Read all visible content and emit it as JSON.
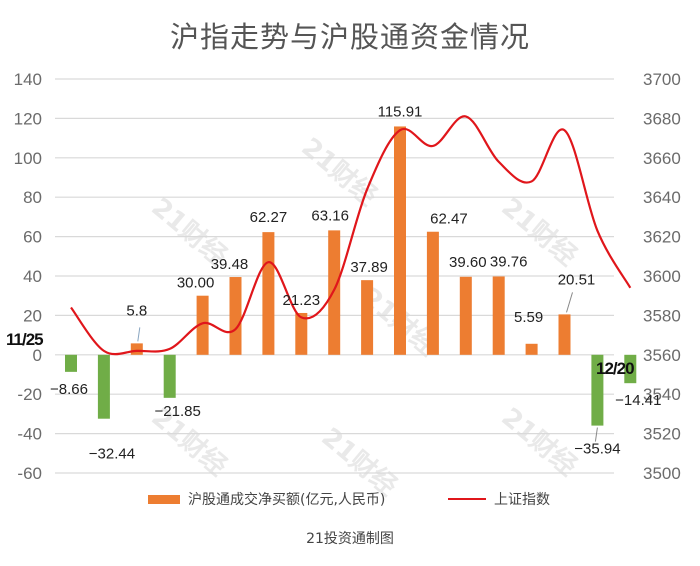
{
  "title": "沪指走势与沪股通资金情况",
  "source": "21投资通制图",
  "watermark": "21财经",
  "colors": {
    "positive_bar": "#ed7d31",
    "negative_bar": "#70ad47",
    "line": "#e0161b",
    "grid": "#d9d9d9",
    "axis_text": "#6b6b6b"
  },
  "legend": {
    "bar_label": "沪股通成交净买额(亿元,人民币)",
    "line_label": "上证指数"
  },
  "date_labels": {
    "start": "11/25",
    "end": "12/20"
  },
  "chart_data": {
    "type": "bar+line",
    "title": "沪指走势与沪股通资金情况",
    "subtitle": "",
    "source": "21投资通制图",
    "x_start_label": "11/25",
    "x_end_label": "12/20",
    "categories_count": 18,
    "left_axis": {
      "label": "沪股通成交净买额(亿元,人民币)",
      "ticks": [
        140,
        120,
        100,
        80,
        60,
        40,
        20,
        0,
        -20,
        -40,
        -60
      ],
      "ylim": [
        -60,
        140
      ]
    },
    "right_axis": {
      "label": "上证指数",
      "ticks": [
        3700,
        3680,
        3660,
        3640,
        3620,
        3600,
        3580,
        3560,
        3540,
        3520,
        3500
      ],
      "ylim": [
        3500,
        3700
      ]
    },
    "series": [
      {
        "name": "沪股通成交净买额(亿元,人民币)",
        "type": "bar",
        "axis": "left",
        "values": [
          -8.66,
          -32.44,
          5.8,
          -21.85,
          30.0,
          39.48,
          62.27,
          21.23,
          63.16,
          37.89,
          115.91,
          62.47,
          39.6,
          39.76,
          5.59,
          20.51,
          -35.94,
          -14.41
        ],
        "labels": [
          "-8.66",
          "-32.44",
          "5.8",
          "-21.85",
          "30.00",
          "39.48",
          "62.27",
          "21.23",
          "63.16",
          "37.89",
          "115.91",
          "62.47",
          "39.60",
          "39.76",
          "5.59",
          "20.51",
          "-35.94",
          "-14.41"
        ]
      },
      {
        "name": "上证指数",
        "type": "line",
        "axis": "right",
        "values": [
          3584,
          3562,
          3562,
          3563,
          3576,
          3573,
          3607,
          3579,
          3593,
          3644,
          3674,
          3666,
          3681,
          3658,
          3648,
          3674,
          3623,
          3594
        ]
      }
    ],
    "grid": true,
    "legend_position": "bottom"
  }
}
